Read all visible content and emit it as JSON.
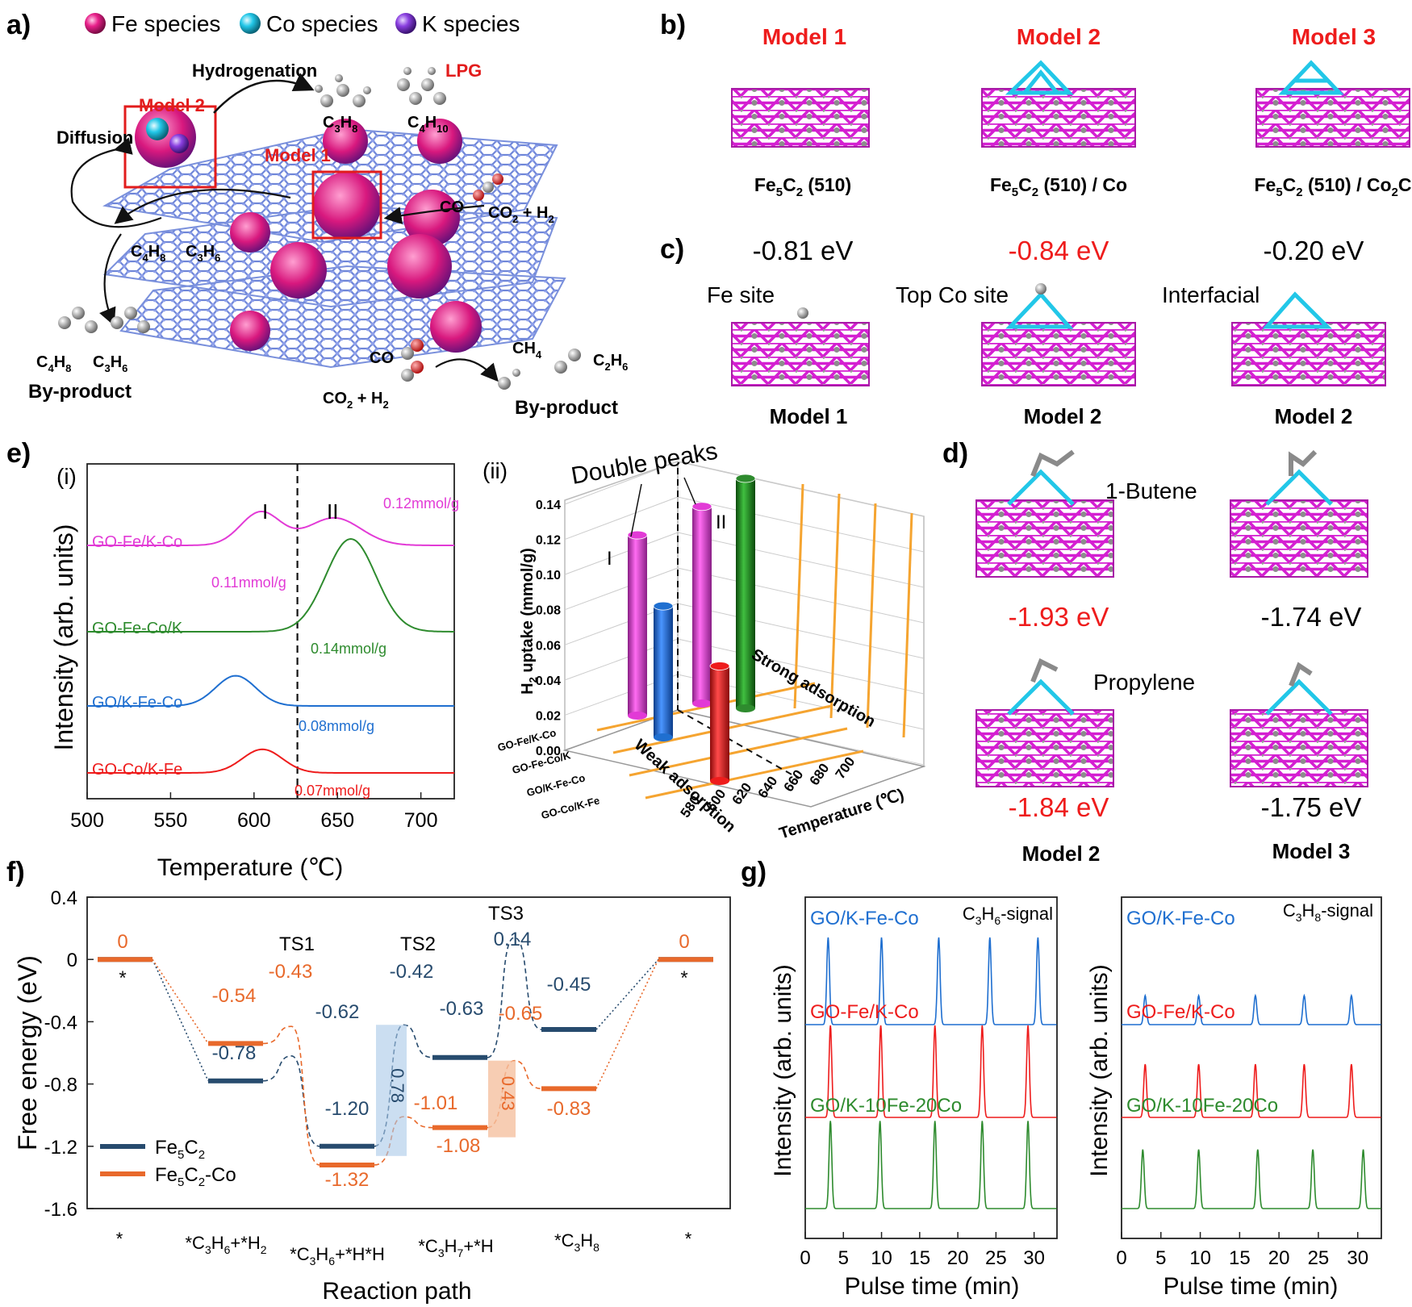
{
  "panel_labels": [
    "a)",
    "b)",
    "c)",
    "d)",
    "e)",
    "f)",
    "g)"
  ],
  "colors": {
    "fe": "#e8208a",
    "co": "#22c7e8",
    "k": "#8a3fe0",
    "red": "#ee1c1c",
    "magenta": "#e23ad6",
    "green": "#2e8b2e",
    "blue": "#1f6fd0",
    "navy": "#274b6e",
    "orange": "#e8692b"
  },
  "panel_a": {
    "legend": [
      "Fe species",
      "Co species",
      "K species"
    ],
    "hydrogenation": "Hydrogenation",
    "lpg": "LPG",
    "diffusion": "Diffusion",
    "model2": "Model 2",
    "model1": "Model 1",
    "c3h8": "C3H8",
    "c4h10": "C4H10",
    "c4h8_a": "C4H8",
    "c3h6_a": "C3H6",
    "co_arrow": "CO",
    "co2h2": "CO2 + H2",
    "c4h8_b": "C4H8",
    "c3h6_b": "C3H6",
    "byproduct_left": "By-product",
    "co_bottom": "CO",
    "co2h2_bottom": "CO2 + H2",
    "ch4": "CH4",
    "c2h6": "C2H6",
    "byproduct_right": "By-product"
  },
  "panel_b": {
    "titles": [
      "Model 1",
      "Model 2",
      "Model 3"
    ],
    "captions": [
      "Fe5C2 (510)",
      "Fe5C2 (510) / Co",
      "Fe5C2 (510) / Co2C"
    ]
  },
  "panel_c": {
    "energies": [
      "-0.81 eV",
      "-0.84 eV",
      "-0.20 eV"
    ],
    "sites": [
      "Fe site",
      "Top Co site",
      "Interfacial"
    ],
    "captions": [
      "Model 1",
      "Model 2",
      "Model 2"
    ]
  },
  "panel_d": {
    "labels": [
      "1-Butene",
      "Propylene"
    ],
    "energies": [
      "-1.93 eV",
      "-1.74 eV",
      "-1.84 eV",
      "-1.75 eV"
    ],
    "captions": [
      "Model 2",
      "Model 3"
    ]
  },
  "panel_e": {
    "sub_i": "(i)",
    "sub_ii": "(ii)",
    "double_peaks": "Double peaks",
    "roman_i": "I",
    "roman_ii": "II",
    "weak": "Weak adsorption",
    "strong": "Strong adsorption"
  },
  "panel_f": {
    "ts_labels": [
      "TS1",
      "TS2",
      "TS3"
    ],
    "star_left": "*",
    "star_right": "*"
  },
  "panel_g": {
    "left_title_pre": "C",
    "left_title_sub": "3",
    "left_title_mid": "H",
    "left_title_sub2": "6",
    "left_title_post": "-signal",
    "right_title_pre": "C",
    "right_title_sub": "3",
    "right_title_mid": "H",
    "right_title_sub2": "8",
    "right_title_post": "-signal"
  },
  "chart_data": [
    {
      "id": "e_i",
      "type": "line",
      "xlabel": "Temperature (℃)",
      "ylabel": "Intensity (arb. units)",
      "xlim": [
        500,
        720
      ],
      "xticks": [
        500,
        550,
        600,
        650,
        700
      ],
      "vline": 626,
      "series": [
        {
          "name": "GO-Fe/K-Co",
          "color": "#e23ad6",
          "peaks": [
            {
              "x": 604,
              "h": 0.75,
              "w": 12
            },
            {
              "x": 648,
              "h": 0.62,
              "w": 16
            }
          ],
          "annotations": [
            "0.11mmol/g",
            "0.12mmol/g"
          ]
        },
        {
          "name": "GO-Fe-Co/K",
          "color": "#2e8b2e",
          "peaks": [
            {
              "x": 658,
              "h": 1.0,
              "w": 15
            }
          ],
          "annotations": [
            "0.14mmol/g"
          ]
        },
        {
          "name": "GO/K-Fe-Co",
          "color": "#1f6fd0",
          "peaks": [
            {
              "x": 589,
              "h": 0.78,
              "w": 12
            }
          ],
          "annotations": [
            "0.08mmol/g"
          ]
        },
        {
          "name": "GO-Co/K-Fe",
          "color": "#ee1c1c",
          "peaks": [
            {
              "x": 605,
              "h": 0.68,
              "w": 12
            }
          ],
          "annotations": [
            "0.07mmol/g"
          ]
        }
      ]
    },
    {
      "id": "e_ii",
      "type": "bar",
      "ylabel": "H2 uptake (mmol/g)",
      "xlabel": "Temperature (℃)",
      "yticks": [
        0.0,
        0.02,
        0.04,
        0.06,
        0.08,
        0.1,
        0.12,
        0.14
      ],
      "xticks": [
        580,
        600,
        620,
        640,
        660,
        680,
        700
      ],
      "categories": [
        "GO-Fe/K-Co",
        "GO-Fe-Co/K",
        "GO/K-Fe-Co",
        "GO-Co/K-Fe"
      ],
      "bars": [
        {
          "sample": "GO-Fe/K-Co",
          "temp": 604,
          "value": 0.11,
          "color": "#e23ad6"
        },
        {
          "sample": "GO/K-Fe-Co",
          "temp": 589,
          "value": 0.08,
          "color": "#1f6fd0"
        },
        {
          "sample": "GO-Fe/K-Co",
          "temp": 648,
          "value": 0.12,
          "color": "#e23ad6"
        },
        {
          "sample": "GO-Co/K-Fe",
          "temp": 605,
          "value": 0.07,
          "color": "#ee1c1c"
        },
        {
          "sample": "GO-Fe-Co/K",
          "temp": 658,
          "value": 0.14,
          "color": "#2e8b2e"
        }
      ]
    },
    {
      "id": "f",
      "type": "line",
      "xlabel": "Reaction path",
      "ylabel": "Free energy (eV)",
      "ylim": [
        -1.6,
        0.4
      ],
      "yticks": [
        "0.4",
        "0",
        "-0.4",
        "-0.8",
        "-1.2",
        "-1.6"
      ],
      "categories": [
        "*",
        "*C3H6+*H2",
        "*C3H6+*H*H",
        "*C3H7+*H",
        "*C3H8",
        "*"
      ],
      "series": [
        {
          "name": "Fe5C2",
          "color": "#274b6e",
          "levels": [
            "0",
            "-0.78",
            "-1.20",
            "-0.63",
            "-0.45",
            "0"
          ],
          "ts": [
            "-0.62",
            "-0.42",
            "0.14"
          ]
        },
        {
          "name": "Fe5C2-Co",
          "color": "#e8692b",
          "levels": [
            "0",
            "-0.54",
            "-1.32",
            "-1.08",
            "-0.83",
            "0"
          ],
          "ts": [
            "-0.43",
            "-1.01",
            "-0.65"
          ]
        }
      ],
      "barriers": [
        "0.78",
        "0.43"
      ]
    },
    {
      "id": "g_left",
      "type": "line",
      "title": "C3H6-signal",
      "xlabel": "Pulse time (min)",
      "ylabel": "Intensity (arb. units)",
      "xlim": [
        0,
        33
      ],
      "xticks": [
        0,
        5,
        10,
        15,
        20,
        25,
        30
      ],
      "series": [
        {
          "name": "GO/K-Fe-Co",
          "color": "#1f6fd0",
          "peaks": [
            3,
            10,
            17.5,
            24.2,
            30.5
          ],
          "height": 0.9
        },
        {
          "name": "GO-Fe/K-Co",
          "color": "#ee1c1c",
          "peaks": [
            3.3,
            9.9,
            17,
            23.2,
            29.2
          ],
          "height": 0.95
        },
        {
          "name": "GO/K-10Fe-20Co",
          "color": "#2e8b2e",
          "peaks": [
            3.3,
            9.8,
            17,
            23.2,
            29.2
          ],
          "height": 0.92
        }
      ]
    },
    {
      "id": "g_right",
      "type": "line",
      "title": "C3H8-signal",
      "xlabel": "Pulse time (min)",
      "ylabel": "Intensity (arb. units)",
      "xlim": [
        0,
        33
      ],
      "xticks": [
        0,
        5,
        10,
        15,
        20,
        25,
        30
      ],
      "series": [
        {
          "name": "GO/K-Fe-Co",
          "color": "#1f6fd0",
          "peaks": [
            3,
            9.8,
            17,
            23.2,
            29.2
          ],
          "height": 0.3
        },
        {
          "name": "GO-Fe/K-Co",
          "color": "#ee1c1c",
          "peaks": [
            3,
            9.8,
            17,
            23.2,
            29.2
          ],
          "height": 0.55
        },
        {
          "name": "GO/K-10Fe-20Co",
          "color": "#2e8b2e",
          "peaks": [
            2.7,
            9.8,
            17.3,
            24.3,
            30.7
          ],
          "height": 0.62
        }
      ]
    }
  ]
}
